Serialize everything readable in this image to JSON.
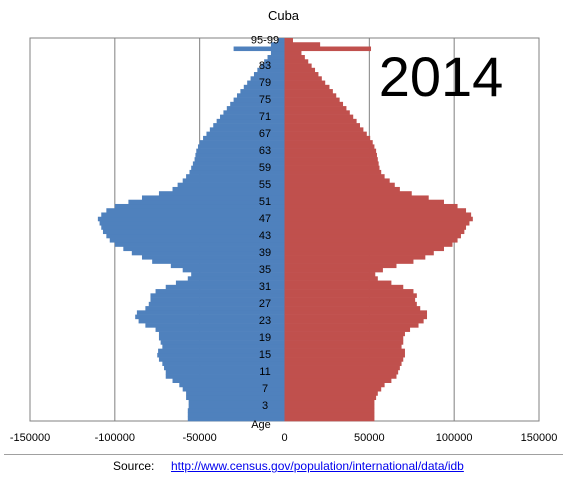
{
  "chart_data": {
    "type": "bar",
    "orientation": "horizontal",
    "title": "Cuba",
    "year_label": "2014",
    "ylabel": "Age",
    "xlim": [
      -150000,
      150000
    ],
    "x_ticks": [
      -150000,
      -100000,
      -50000,
      0,
      50000,
      100000,
      150000
    ],
    "x_tick_labels": [
      "-150000",
      "-100000",
      "-50000",
      "0",
      "50000",
      "100000",
      "150000"
    ],
    "grid": "vertical",
    "age_tick_labels": [
      "95-99",
      "83",
      "79",
      "75",
      "71",
      "67",
      "63",
      "59",
      "55",
      "51",
      "47",
      "43",
      "39",
      "35",
      "31",
      "27",
      "23",
      "19",
      "15",
      "11",
      "7",
      "3"
    ],
    "ages": [
      0,
      1,
      2,
      3,
      4,
      5,
      6,
      7,
      8,
      9,
      10,
      11,
      12,
      13,
      14,
      15,
      16,
      17,
      18,
      19,
      20,
      21,
      22,
      23,
      24,
      25,
      26,
      27,
      28,
      29,
      30,
      31,
      32,
      33,
      34,
      35,
      36,
      37,
      38,
      39,
      40,
      41,
      42,
      43,
      44,
      45,
      46,
      47,
      48,
      49,
      50,
      51,
      52,
      53,
      54,
      55,
      56,
      57,
      58,
      59,
      60,
      61,
      62,
      63,
      64,
      65,
      66,
      67,
      68,
      69,
      70,
      71,
      72,
      73,
      74,
      75,
      76,
      77,
      78,
      79,
      80,
      81,
      82,
      83,
      84,
      85,
      86,
      87,
      88,
      89
    ],
    "series": [
      {
        "color": "#4f81bd",
        "values": [
          -57000,
          -57000,
          -57000,
          -56500,
          -56500,
          -58000,
          -58000,
          -60000,
          -62000,
          -66000,
          -70000,
          -70000,
          -71000,
          -72000,
          -74000,
          -75000,
          -74500,
          -72000,
          -73000,
          -74000,
          -74000,
          -76000,
          -82000,
          -86000,
          -88000,
          -87000,
          -82000,
          -80000,
          -79000,
          -79000,
          -76000,
          -70000,
          -64000,
          -57000,
          -55000,
          -60000,
          -67000,
          -78000,
          -84000,
          -90000,
          -95000,
          -100000,
          -103000,
          -105000,
          -107000,
          -108000,
          -109000,
          -110000,
          -108000,
          -105000,
          -100000,
          -92000,
          -84000,
          -74000,
          -66000,
          -63000,
          -60000,
          -58000,
          -56000,
          -55000,
          -54000,
          -53000,
          -52500,
          -52000,
          -51000,
          -50000,
          -48000,
          -46000,
          -44000,
          -42000,
          -40000,
          -38000,
          -36000,
          -34000,
          -32000,
          -30000,
          -28000,
          -26000,
          -24000,
          -22000,
          -20000,
          -18000,
          -16000,
          -14000,
          -12000,
          -10000,
          -8000,
          -30000,
          -8000,
          -4000
        ]
      },
      {
        "color": "#c0504d",
        "values": [
          53000,
          53000,
          53000,
          53000,
          53000,
          54000,
          55000,
          57000,
          59000,
          63000,
          66000,
          67000,
          68000,
          69000,
          70000,
          71000,
          71000,
          69000,
          70000,
          70000,
          71000,
          74000,
          79000,
          82000,
          84000,
          84000,
          80000,
          78000,
          77000,
          78000,
          76000,
          70000,
          63000,
          55000,
          53500,
          58000,
          66000,
          76000,
          83000,
          88000,
          94000,
          99000,
          102000,
          104000,
          106000,
          107000,
          109000,
          111000,
          110000,
          107000,
          102000,
          94000,
          85000,
          75000,
          68000,
          65000,
          62000,
          59000,
          57000,
          56000,
          55500,
          55000,
          54500,
          54000,
          53000,
          52000,
          50500,
          48500,
          46500,
          44500,
          42500,
          40500,
          38500,
          36500,
          34500,
          32500,
          30500,
          28500,
          26500,
          24000,
          22000,
          20000,
          18000,
          16000,
          14000,
          12000,
          10000,
          51000,
          21000,
          5000
        ]
      }
    ]
  },
  "source": {
    "label": "Source:",
    "link": "http://www.census.gov/population/international/data/idb"
  }
}
